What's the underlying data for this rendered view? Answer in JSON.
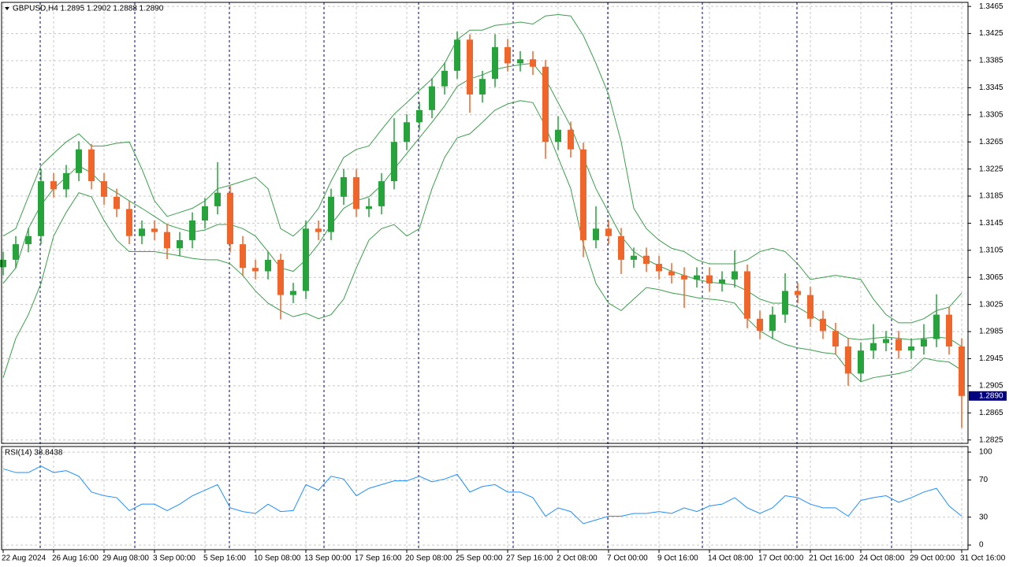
{
  "chart_data": [
    {
      "type": "candlestick",
      "header": "GBPUSD,H4  1.2895 1.2902 1.2888 1.2890",
      "categories": [
        "22 Aug 2024",
        null,
        null,
        null,
        "26 Aug 16:00",
        null,
        null,
        null,
        "29 Aug 08:00",
        null,
        null,
        null,
        "3 Sep 00:00",
        null,
        null,
        null,
        "5 Sep 16:00",
        null,
        null,
        null,
        "10 Sep 08:00",
        null,
        null,
        null,
        "13 Sep 00:00",
        null,
        null,
        null,
        "17 Sep 16:00",
        null,
        null,
        null,
        "20 Sep 08:00",
        null,
        null,
        null,
        "25 Sep 00:00",
        null,
        null,
        null,
        "27 Sep 16:00",
        null,
        null,
        null,
        "2 Oct 08:00",
        null,
        null,
        null,
        "7 Oct 00:00",
        null,
        null,
        null,
        "9 Oct 16:00",
        null,
        null,
        null,
        "14 Oct 08:00",
        null,
        null,
        null,
        "17 Oct 00:00",
        null,
        null,
        null,
        "21 Oct 16:00",
        null,
        null,
        null,
        "24 Oct 08:00",
        null,
        null,
        null,
        "29 Oct 00:00",
        null,
        null,
        null,
        "31 Oct 16:00"
      ],
      "open": [
        1.308,
        1.3091,
        1.3114,
        1.3126,
        1.3207,
        1.3195,
        1.3219,
        1.3254,
        1.3207,
        1.3184,
        1.3166,
        1.3126,
        1.3137,
        1.3132,
        1.3108,
        1.312,
        1.3149,
        1.317,
        1.319,
        1.3114,
        1.3079,
        1.3074,
        1.3091,
        1.3039,
        1.3045,
        1.3137,
        1.3132,
        1.3184,
        1.3213,
        1.3166,
        1.317,
        1.3207,
        1.3265,
        1.3294,
        1.3312,
        1.3347,
        1.337,
        1.3416,
        1.3335,
        1.3358,
        1.3405,
        1.3381,
        1.3387,
        1.3376,
        1.3265,
        1.3283,
        1.3254,
        1.312,
        1.3137,
        1.3126,
        1.3091,
        1.3097,
        1.3085,
        1.3074,
        1.3068,
        1.3062,
        1.3068,
        1.3056,
        1.3062,
        1.3074,
        1.3004,
        1.2986,
        1.301,
        1.3045,
        1.3039,
        1.3004,
        1.2986,
        1.2963,
        1.2923,
        1.2957,
        1.2968,
        1.2974,
        1.2957,
        1.2963,
        1.2974,
        1.301,
        1.2963
      ],
      "high": [
        1.3103,
        1.3126,
        1.3138,
        1.3225,
        1.3219,
        1.3231,
        1.3266,
        1.3262,
        1.3219,
        1.3196,
        1.3178,
        1.3149,
        1.3149,
        1.3144,
        1.3132,
        1.3161,
        1.3182,
        1.3235,
        1.32,
        1.3126,
        1.3091,
        1.3103,
        1.31,
        1.3057,
        1.3149,
        1.3149,
        1.3196,
        1.3225,
        1.3225,
        1.3182,
        1.3219,
        1.33,
        1.3306,
        1.3324,
        1.3359,
        1.3382,
        1.3428,
        1.3424,
        1.337,
        1.3424,
        1.3417,
        1.3399,
        1.3399,
        1.3386,
        1.3303,
        1.3295,
        1.3264,
        1.317,
        1.3149,
        1.3138,
        1.3109,
        1.3109,
        1.3097,
        1.3086,
        1.308,
        1.308,
        1.308,
        1.3074,
        1.3105,
        1.3084,
        1.3016,
        1.3022,
        1.3071,
        1.3057,
        1.3051,
        1.3016,
        1.2998,
        1.2975,
        1.2969,
        1.2996,
        1.2986,
        1.2986,
        1.2975,
        1.2996,
        1.304,
        1.3022,
        1.2975
      ],
      "low": [
        1.3068,
        1.3079,
        1.3102,
        1.3114,
        1.3183,
        1.3183,
        1.3207,
        1.3195,
        1.3172,
        1.3154,
        1.3114,
        1.3114,
        1.312,
        1.3092,
        1.3096,
        1.3108,
        1.3137,
        1.3158,
        1.3102,
        1.3067,
        1.3062,
        1.3062,
        1.3003,
        1.3027,
        1.3033,
        1.312,
        1.312,
        1.3172,
        1.3154,
        1.3154,
        1.3158,
        1.3195,
        1.3253,
        1.3282,
        1.33,
        1.3335,
        1.3358,
        1.3308,
        1.3323,
        1.3346,
        1.3369,
        1.3369,
        1.3364,
        1.324,
        1.3253,
        1.3242,
        1.3095,
        1.3108,
        1.3114,
        1.307,
        1.3079,
        1.3073,
        1.3062,
        1.3056,
        1.302,
        1.305,
        1.3044,
        1.3044,
        1.305,
        1.299,
        1.2974,
        1.2974,
        1.2998,
        1.3027,
        1.2992,
        1.2974,
        1.2951,
        1.2905,
        1.2911,
        1.2945,
        1.2956,
        1.2945,
        1.2945,
        1.2951,
        1.2962,
        1.2951,
        1.2843
      ],
      "close": [
        1.3091,
        1.3114,
        1.3126,
        1.3207,
        1.3195,
        1.3219,
        1.3254,
        1.3207,
        1.3184,
        1.3166,
        1.3126,
        1.3137,
        1.3132,
        1.3108,
        1.312,
        1.3149,
        1.317,
        1.319,
        1.3114,
        1.3079,
        1.3074,
        1.3091,
        1.3039,
        1.3045,
        1.3137,
        1.3132,
        1.3184,
        1.3213,
        1.3166,
        1.317,
        1.3207,
        1.3265,
        1.3294,
        1.3312,
        1.3347,
        1.337,
        1.3416,
        1.3335,
        1.3358,
        1.3405,
        1.3381,
        1.3387,
        1.3376,
        1.3265,
        1.3283,
        1.3254,
        1.312,
        1.3137,
        1.3126,
        1.3091,
        1.3097,
        1.3085,
        1.3074,
        1.3068,
        1.3062,
        1.3068,
        1.3056,
        1.3062,
        1.3074,
        1.3004,
        1.2986,
        1.301,
        1.3045,
        1.3039,
        1.3004,
        1.2986,
        1.2963,
        1.2923,
        1.2957,
        1.2968,
        1.2974,
        1.2957,
        1.2963,
        1.2974,
        1.301,
        1.2963,
        1.289
      ],
      "up_color": "#27a33c",
      "down_color": "#f0662a",
      "bands": [
        {
          "color": "#3b9e4c",
          "values": [
            1.3126,
            1.3137,
            1.3184,
            1.323,
            1.3248,
            1.3265,
            1.3277,
            1.3259,
            1.3259,
            1.3263,
            1.3265,
            1.3225,
            1.3178,
            1.3155,
            1.3161,
            1.3167,
            1.3178,
            1.3196,
            1.3201,
            1.3207,
            1.3213,
            1.3196,
            1.3137,
            1.3126,
            1.3143,
            1.3167,
            1.3207,
            1.3242,
            1.3254,
            1.3259,
            1.3283,
            1.3306,
            1.3323,
            1.3341,
            1.3358,
            1.3381,
            1.3416,
            1.343,
            1.343,
            1.3437,
            1.3439,
            1.3442,
            1.3439,
            1.3451,
            1.3453,
            1.3451,
            1.3422,
            1.3381,
            1.3335,
            1.3265,
            1.3167,
            1.3137,
            1.312,
            1.3108,
            1.3103,
            1.3091,
            1.3085,
            1.3085,
            1.3085,
            1.3091,
            1.3103,
            1.3108,
            1.3103,
            1.3085,
            1.3062,
            1.3065,
            1.3068,
            1.3065,
            1.3062,
            1.3033,
            1.301,
            1.2998,
            1.2998,
            1.3004,
            1.3016,
            1.3021,
            1.3042
          ]
        },
        {
          "color": "#3b9e4c",
          "values": [
            1.3056,
            1.3079,
            1.3137,
            1.3172,
            1.3196,
            1.3213,
            1.323,
            1.3219,
            1.3201,
            1.319,
            1.3178,
            1.3167,
            1.3155,
            1.3143,
            1.3137,
            1.3132,
            1.3135,
            1.3143,
            1.3143,
            1.3137,
            1.3126,
            1.3103,
            1.3079,
            1.3074,
            1.3091,
            1.3114,
            1.3143,
            1.3167,
            1.3178,
            1.3184,
            1.3201,
            1.3225,
            1.3248,
            1.3271,
            1.3294,
            1.3318,
            1.3347,
            1.3358,
            1.3364,
            1.3372,
            1.3376,
            1.3379,
            1.3381,
            1.3358,
            1.3323,
            1.3288,
            1.3242,
            1.3196,
            1.3161,
            1.3126,
            1.3103,
            1.3091,
            1.3082,
            1.3074,
            1.3068,
            1.3062,
            1.3058,
            1.3056,
            1.3054,
            1.3045,
            1.3033,
            1.3027,
            1.3027,
            1.3021,
            1.301,
            1.2998,
            1.2986,
            1.2975,
            1.2973,
            1.2975,
            1.2977,
            1.2975,
            1.2973,
            1.2975,
            1.2977,
            1.2975,
            1.2963
          ]
        },
        {
          "color": "#3b9e4c",
          "values": [
            1.2917,
            1.2975,
            1.301,
            1.3056,
            1.3126,
            1.3161,
            1.319,
            1.3184,
            1.3149,
            1.312,
            1.3103,
            1.3103,
            1.3103,
            1.31,
            1.3097,
            1.3093,
            1.3091,
            1.3091,
            1.3085,
            1.3068,
            1.3045,
            1.3027,
            1.3016,
            1.3007,
            1.3012,
            1.3004,
            1.301,
            1.3033,
            1.3079,
            1.312,
            1.3137,
            1.3143,
            1.3126,
            1.3137,
            1.3196,
            1.3242,
            1.3271,
            1.3277,
            1.3294,
            1.3312,
            1.3321,
            1.3326,
            1.3323,
            1.3288,
            1.3242,
            1.3196,
            1.3114,
            1.3056,
            1.3027,
            1.3016,
            1.3033,
            1.305,
            1.3047,
            1.3042,
            1.3039,
            1.3035,
            1.3033,
            1.3031,
            1.3027,
            1.3004,
            1.2986,
            1.2975,
            1.2966,
            1.2961,
            1.2958,
            1.2954,
            1.2952,
            1.2928,
            1.2911,
            1.2917,
            1.292,
            1.2923,
            1.2928,
            1.2946,
            1.2942,
            1.294,
            1.2928
          ]
        }
      ],
      "ylim": [
        1.282,
        1.3471
      ],
      "yticks": [
        1.3465,
        1.3425,
        1.3385,
        1.3345,
        1.3305,
        1.3265,
        1.3225,
        1.3185,
        1.3145,
        1.3105,
        1.3065,
        1.3025,
        1.2985,
        1.2945,
        1.2905,
        1.2865,
        1.2825
      ],
      "current_price": {
        "value": 1.289,
        "label": "1.2890"
      },
      "price_box_color": "#000080",
      "grid": true
    },
    {
      "type": "line",
      "title": "RSI(14) 38.8438",
      "color": "#1e8fff",
      "values": [
        82,
        78,
        78,
        85,
        78,
        80,
        74,
        57,
        53,
        51,
        37,
        44,
        44,
        37,
        44,
        53,
        59,
        65,
        40,
        36,
        34,
        44,
        36,
        37,
        65,
        59,
        74,
        71,
        53,
        61,
        65,
        69,
        69,
        74,
        68,
        71,
        76,
        57,
        63,
        65,
        57,
        57,
        51,
        31,
        40,
        36,
        23,
        27,
        31,
        31,
        34,
        34,
        36,
        34,
        40,
        36,
        42,
        44,
        51,
        40,
        34,
        40,
        53,
        51,
        44,
        40,
        40,
        31,
        48,
        51,
        53,
        46,
        51,
        57,
        61,
        42,
        31
      ],
      "ylim": [
        -5,
        106
      ],
      "yticks": [
        100,
        70,
        30,
        0
      ],
      "grid": true
    }
  ]
}
